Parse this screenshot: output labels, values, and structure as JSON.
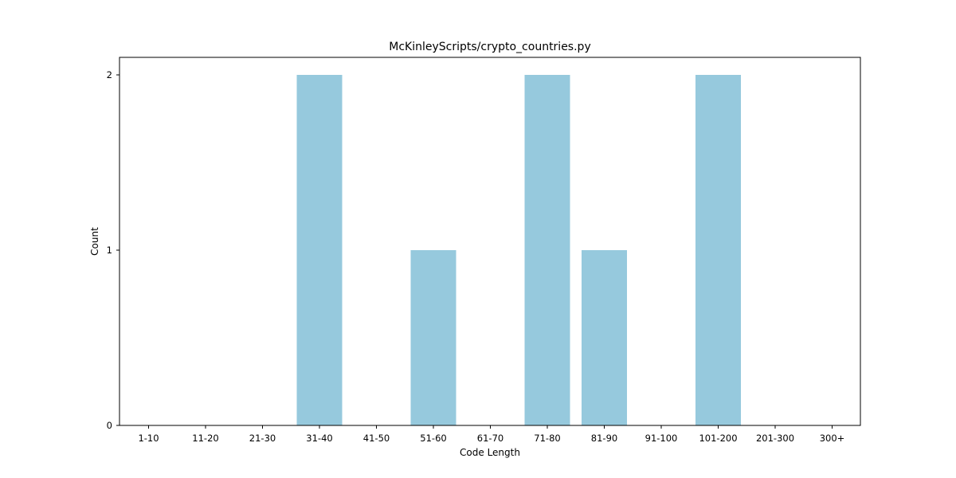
{
  "chart_data": {
    "type": "bar",
    "title": "McKinleyScripts/crypto_countries.py",
    "xlabel": "Code Length",
    "ylabel": "Count",
    "categories": [
      "1-10",
      "11-20",
      "21-30",
      "31-40",
      "41-50",
      "51-60",
      "61-70",
      "71-80",
      "81-90",
      "91-100",
      "101-200",
      "201-300",
      "300+"
    ],
    "values": [
      0,
      0,
      0,
      2,
      0,
      1,
      0,
      2,
      1,
      0,
      2,
      0,
      0
    ],
    "yticks": [
      0,
      1,
      2
    ],
    "ylim": [
      0,
      2.1
    ],
    "grid": false,
    "bar_color": "#96c9dd",
    "axis_color": "#000000"
  }
}
